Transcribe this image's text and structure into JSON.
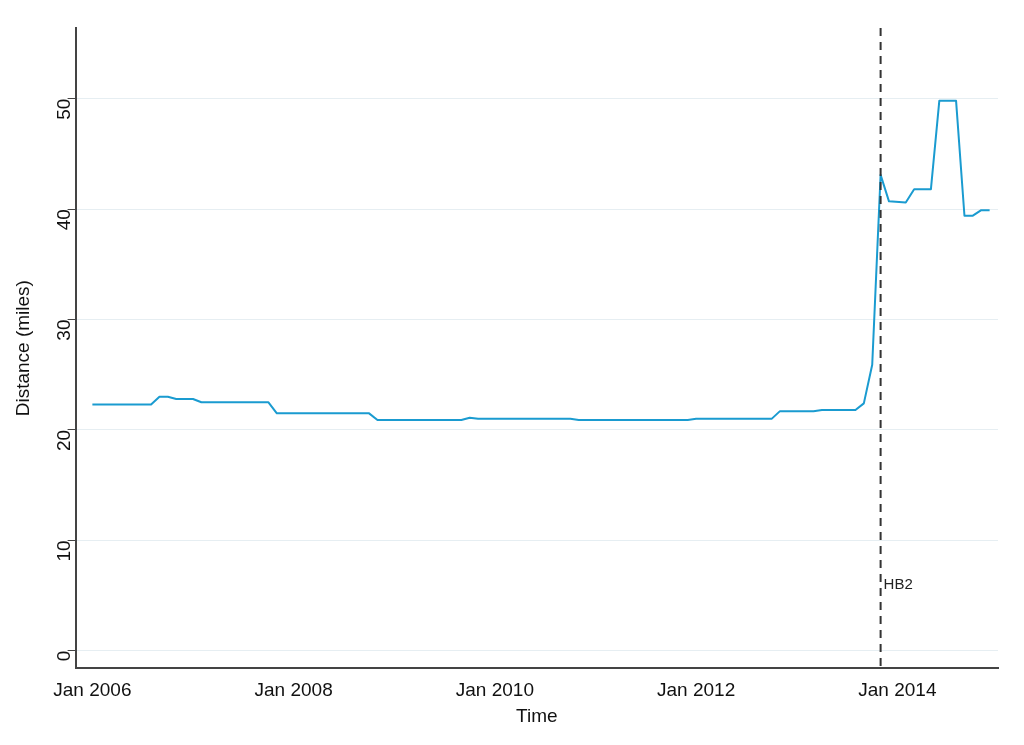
{
  "chart_data": {
    "type": "line",
    "xlabel": "Time",
    "ylabel": "Distance (miles)",
    "x": [
      "2006-01",
      "2006-08",
      "2006-09",
      "2006-10",
      "2006-11",
      "2007-01",
      "2007-02",
      "2007-10",
      "2007-11",
      "2008-10",
      "2008-11",
      "2009-09",
      "2009-10",
      "2009-11",
      "2010-10",
      "2010-11",
      "2011-12",
      "2012-01",
      "2012-10",
      "2012-11",
      "2013-03",
      "2013-04",
      "2013-08",
      "2013-09",
      "2013-10",
      "2013-11",
      "2013-12",
      "2014-02",
      "2014-03",
      "2014-05",
      "2014-06",
      "2014-08",
      "2014-09",
      "2014-10",
      "2014-11",
      "2014-12"
    ],
    "series": [
      {
        "color": "#1a9bd0",
        "values": [
          22.3,
          22.3,
          23.0,
          23.0,
          22.8,
          22.8,
          22.5,
          22.5,
          21.5,
          21.5,
          20.9,
          20.9,
          21.1,
          21.0,
          21.0,
          20.9,
          20.9,
          21.0,
          21.0,
          21.7,
          21.7,
          21.8,
          21.8,
          22.4,
          25.9,
          43.1,
          40.7,
          40.6,
          41.8,
          41.8,
          49.8,
          49.8,
          39.4,
          39.4,
          39.9,
          39.9
        ]
      }
    ],
    "xlim": [
      "2005-11",
      "2015-01"
    ],
    "xticks": [
      {
        "value": "2006-01",
        "label": "Jan 2006"
      },
      {
        "value": "2008-01",
        "label": "Jan 2008"
      },
      {
        "value": "2010-01",
        "label": "Jan 2010"
      },
      {
        "value": "2012-01",
        "label": "Jan 2012"
      },
      {
        "value": "2014-01",
        "label": "Jan 2014"
      }
    ],
    "ylim": [
      -1.6,
      56.4
    ],
    "yticks": [
      0,
      10,
      20,
      30,
      40,
      50
    ],
    "grid": "y",
    "legend": false,
    "marker": "none",
    "line_style": "solid",
    "ref_lines": [
      {
        "axis": "x",
        "value": "2013-11",
        "label": "HB2",
        "color": "#333333",
        "line_style": "dashed"
      }
    ]
  }
}
